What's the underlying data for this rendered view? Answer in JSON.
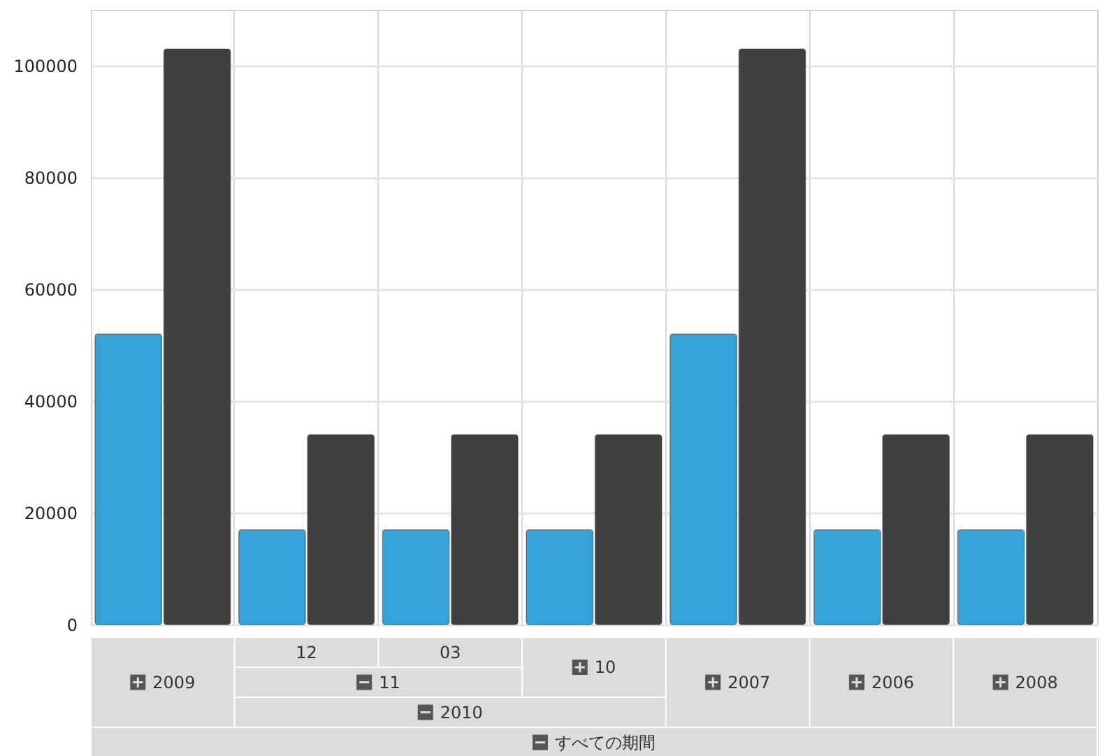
{
  "chart_data": {
    "type": "bar",
    "categories": [
      "2009",
      "12",
      "03",
      "10",
      "2007",
      "2006",
      "2008"
    ],
    "annotations": [
      "11",
      "2010",
      "すべての期間"
    ],
    "series": [
      {
        "color": "#33a3d8",
        "values": [
          52000,
          17000,
          17000,
          17000,
          52000,
          17000,
          17000
        ]
      },
      {
        "color": "#404040",
        "values": [
          103000,
          34000,
          34000,
          34000,
          103000,
          34000,
          34000
        ]
      }
    ],
    "ylim": [
      0,
      110000
    ],
    "yticks": [
      0,
      20000,
      40000,
      60000,
      80000,
      100000
    ],
    "grid": true
  }
}
